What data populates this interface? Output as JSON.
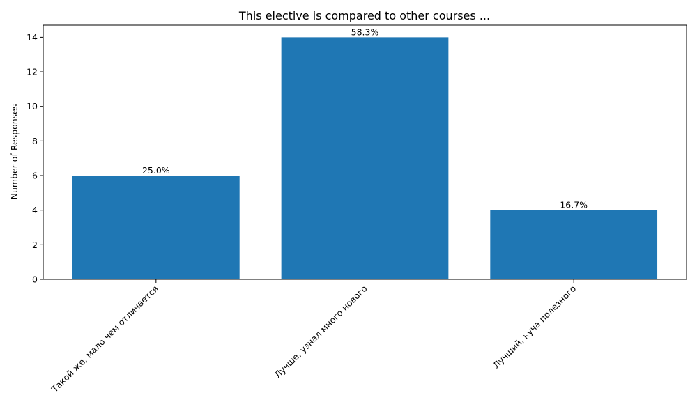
{
  "chart_data": {
    "type": "bar",
    "title": "This elective is compared to other courses ...",
    "xlabel": "",
    "ylabel": "Number of Responses",
    "categories": [
      "Такой же, мало чем отличается",
      "Лучше, узнал много нового",
      "Лучший, куча полезного"
    ],
    "values": [
      6,
      14,
      4
    ],
    "data_labels": [
      "25.0%",
      "58.3%",
      "16.7%"
    ],
    "ylim": [
      0,
      14.7
    ],
    "yticks": [
      0,
      2,
      4,
      6,
      8,
      10,
      12,
      14
    ],
    "grid": false,
    "bar_color": "#1f77b4"
  }
}
